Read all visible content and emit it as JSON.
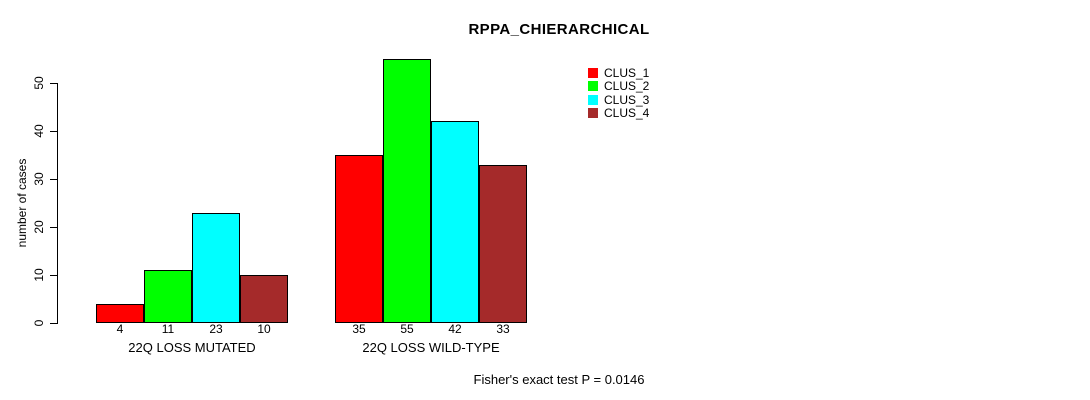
{
  "chart_data": {
    "type": "bar",
    "title": "RPPA_CHIERARCHICAL",
    "ylabel": "number of cases",
    "xlabel": "",
    "ylim": [
      0,
      55
    ],
    "yticks": [
      0,
      10,
      20,
      30,
      40,
      50
    ],
    "grid": false,
    "legend_position": "topright",
    "categories": [
      "22Q LOSS MUTATED",
      "22Q LOSS WILD-TYPE"
    ],
    "series": [
      {
        "name": "CLUS_1",
        "color": "#FF0000",
        "values": [
          4,
          35
        ]
      },
      {
        "name": "CLUS_2",
        "color": "#00FF00",
        "values": [
          11,
          55
        ]
      },
      {
        "name": "CLUS_3",
        "color": "#00FFFF",
        "values": [
          23,
          42
        ]
      },
      {
        "name": "CLUS_4",
        "color": "#A52A2A",
        "values": [
          10,
          33
        ]
      }
    ],
    "bar_value_labels": [
      [
        4,
        11,
        23,
        10
      ],
      [
        35,
        55,
        42,
        33
      ]
    ],
    "annotation": "Fisher's exact test P = 0.0146"
  }
}
